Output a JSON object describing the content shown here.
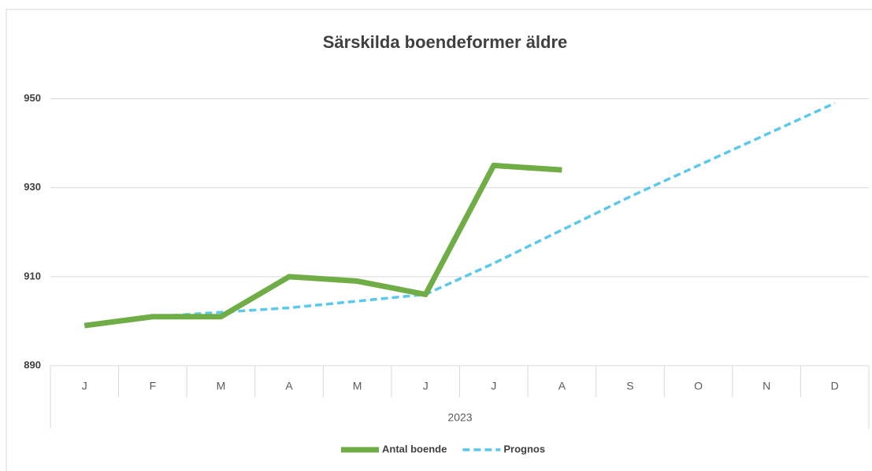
{
  "chart_data": {
    "type": "line",
    "title": "Särskilda boendeformer äldre",
    "categories": [
      "J",
      "F",
      "M",
      "A",
      "M",
      "J",
      "J",
      "A",
      "S",
      "O",
      "N",
      "D"
    ],
    "x_group_label": "2023",
    "series": [
      {
        "name": "Antal boende",
        "color": "#70ad47",
        "dash": "solid",
        "values": [
          899,
          901,
          901,
          910,
          909,
          906,
          935,
          934,
          null,
          null,
          null,
          null
        ]
      },
      {
        "name": "Prognos",
        "color": "#5bc8ec",
        "dash": "dashed",
        "values": [
          899,
          901,
          902,
          903,
          904.5,
          906,
          913,
          920.5,
          928,
          935,
          942,
          949
        ]
      }
    ],
    "ylim": [
      890,
      960
    ],
    "yticks": [
      890,
      910,
      930,
      950
    ],
    "grid": true,
    "legend": "bottom"
  }
}
